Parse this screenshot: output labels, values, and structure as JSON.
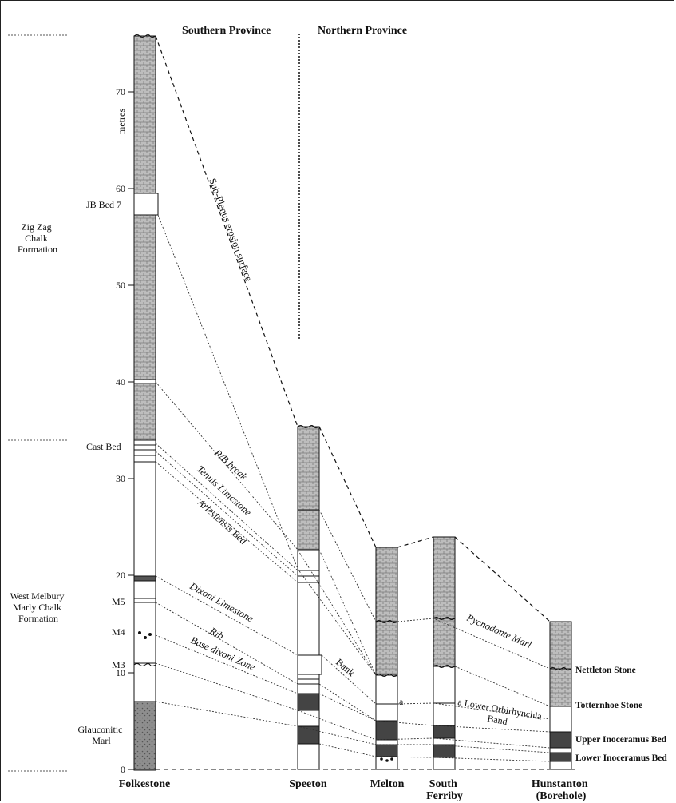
{
  "headers": {
    "southern": "Southern Province",
    "northern": "Northern Province"
  },
  "axis": {
    "unit": "metres",
    "ticks": [
      "0",
      "10",
      "20",
      "30",
      "40",
      "50",
      "60",
      "70"
    ]
  },
  "formations": {
    "zigzag": [
      "Zig Zag",
      "Chalk",
      "Formation"
    ],
    "westmelbury": [
      "West Melbury",
      "Marly Chalk",
      "Formation"
    ]
  },
  "left_labels": {
    "jb_bed_7": "JB Bed 7",
    "cast_bed": "Cast Bed",
    "m5": "M5",
    "m4": "M4",
    "m3": "M3",
    "glauconitic": [
      "Glauconitic",
      "Marl"
    ]
  },
  "sections": {
    "folkestone": "Folkestone",
    "speeton": "Speeton",
    "melton": "Melton",
    "south_ferriby": [
      "South",
      "Ferriby"
    ],
    "hunstanton": [
      "Hunstanton",
      "(Borehole)"
    ]
  },
  "correlations": {
    "sub_plenus": "Sub-Plenus erosion surface",
    "pb_break": "P/B break",
    "tenuis": "Tenuis Limestone",
    "arlesiensis": "Arlesiensis Bed",
    "dixoni_limestone": "Dixoni Limestone",
    "rib": "Rib",
    "base_dixoni": "Base dixoni Zone",
    "bank": "Bank",
    "pycnodonte": "Pycnodonte Marl",
    "lower_orbirhynchia": [
      "a Lower Orbirhynchia",
      "Band"
    ],
    "melton_a": "a"
  },
  "right_labels": {
    "nettleton": "Nettleton Stone",
    "totternhoe": "Totternhoe Stone",
    "upper_inoceramus": "Upper Inoceramus Bed",
    "lower_inoceramus": "Lower Inoceramus Bed"
  },
  "colors": {
    "ink": "#111111",
    "dark_bed": "#404040",
    "chalk_fill": "#b8b8b8",
    "marl_fill": "#8c8c8c"
  }
}
